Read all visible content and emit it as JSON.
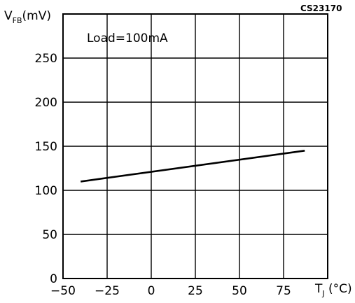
{
  "chart_data": {
    "type": "line",
    "code_label": "CS23170",
    "annotation": "Load=100mA",
    "ylabel": {
      "main": "V",
      "sub": "FB",
      "unit": "(mV)"
    },
    "xlabel": {
      "main": "T",
      "sub": "J",
      "unit": " (°C)"
    },
    "xlim": [
      -50,
      100
    ],
    "ylim": [
      0,
      300
    ],
    "x_ticks": [
      -50,
      -25,
      0,
      25,
      50,
      75
    ],
    "x_tick_labels": [
      "−50",
      "−25",
      "0",
      "25",
      "50",
      "75"
    ],
    "y_ticks": [
      0,
      50,
      100,
      150,
      200,
      250
    ],
    "y_tick_labels": [
      "0",
      "50",
      "100",
      "150",
      "200",
      "250"
    ],
    "grid": true,
    "series": [
      {
        "x": [
          -40,
          87
        ],
        "y": [
          110,
          145
        ]
      }
    ]
  }
}
